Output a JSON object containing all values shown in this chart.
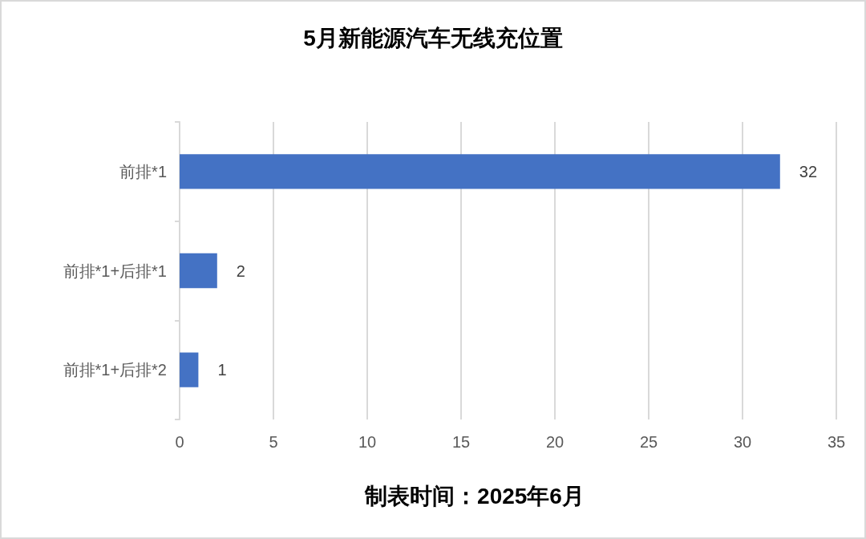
{
  "chart_data": {
    "type": "bar",
    "orientation": "horizontal",
    "title": "5月新能源汽车无线充位置",
    "categories": [
      "前排*1",
      "前排*1+后排*1",
      "前排*1+后排*2"
    ],
    "values": [
      32,
      2,
      1
    ],
    "color": "#4472c4",
    "xlim": [
      0,
      35
    ],
    "xticks": [
      0,
      5,
      10,
      15,
      20,
      25,
      30,
      35
    ],
    "grid": "x",
    "data_labels": true,
    "annotations": [
      "制表时间：2025年6月"
    ]
  }
}
